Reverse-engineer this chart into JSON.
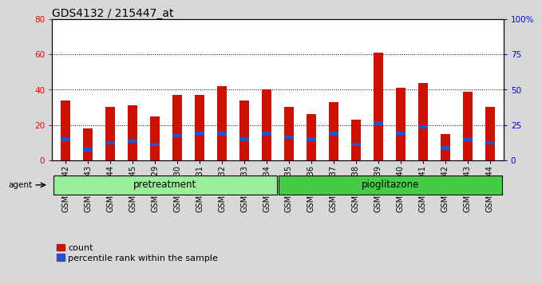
{
  "title": "GDS4132 / 215447_at",
  "categories": [
    "GSM201542",
    "GSM201543",
    "GSM201544",
    "GSM201545",
    "GSM201829",
    "GSM201830",
    "GSM201831",
    "GSM201832",
    "GSM201833",
    "GSM201834",
    "GSM201835",
    "GSM201836",
    "GSM201837",
    "GSM201838",
    "GSM201839",
    "GSM201840",
    "GSM201841",
    "GSM201842",
    "GSM201843",
    "GSM201844"
  ],
  "count_values": [
    34,
    18,
    30,
    31,
    25,
    37,
    37,
    42,
    34,
    40,
    30,
    26,
    33,
    23,
    61,
    41,
    44,
    15,
    39,
    30
  ],
  "percentile_values": [
    13,
    7,
    11,
    12,
    10,
    15,
    16,
    16,
    13,
    16,
    14,
    13,
    16,
    10,
    22,
    16,
    20,
    8,
    13,
    11
  ],
  "bar_color": "#cc1100",
  "percentile_color": "#2255cc",
  "bar_width": 0.45,
  "ylim_left": [
    0,
    80
  ],
  "ylim_right": [
    0,
    100
  ],
  "yticks_left": [
    0,
    20,
    40,
    60,
    80
  ],
  "ytick_labels_left": [
    "0",
    "20",
    "40",
    "60",
    "80"
  ],
  "yticks_right": [
    0,
    25,
    50,
    75,
    100
  ],
  "ytick_labels_right": [
    "0",
    "25",
    "50",
    "75",
    "100%"
  ],
  "group1_label": "pretreatment",
  "group2_label": "pioglitazone",
  "agent_label": "agent",
  "legend_count": "count",
  "legend_percentile": "percentile rank within the sample",
  "background_color": "#d8d8d8",
  "plot_bg_color": "#ffffff",
  "group_color1": "#99ee99",
  "group_color2": "#44cc44",
  "title_fontsize": 10,
  "tick_fontsize": 7,
  "legend_fontsize": 8,
  "grid_yticks": [
    20,
    40,
    60
  ]
}
